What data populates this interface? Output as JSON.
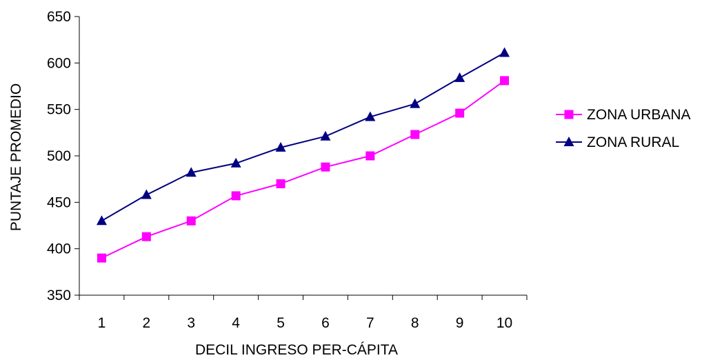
{
  "chart_data": {
    "type": "line",
    "title": "",
    "xlabel": "DECIL INGRESO PER-CÁPITA",
    "ylabel": "PUNTAJE PROMEDIO",
    "categories": [
      "1",
      "2",
      "3",
      "4",
      "5",
      "6",
      "7",
      "8",
      "9",
      "10"
    ],
    "ylim": [
      350,
      650
    ],
    "yticks": [
      "350",
      "400",
      "450",
      "500",
      "550",
      "600",
      "650"
    ],
    "grid": false,
    "legend_position": "right",
    "series": [
      {
        "name": "ZONA URBANA",
        "color": "#FF00FF",
        "marker": "square",
        "values": [
          390,
          413,
          430,
          457,
          470,
          488,
          500,
          523,
          546,
          581
        ]
      },
      {
        "name": "ZONA RURAL",
        "color": "#000080",
        "marker": "triangle",
        "values": [
          430,
          458,
          482,
          492,
          509,
          521,
          542,
          556,
          584,
          611
        ]
      }
    ]
  }
}
